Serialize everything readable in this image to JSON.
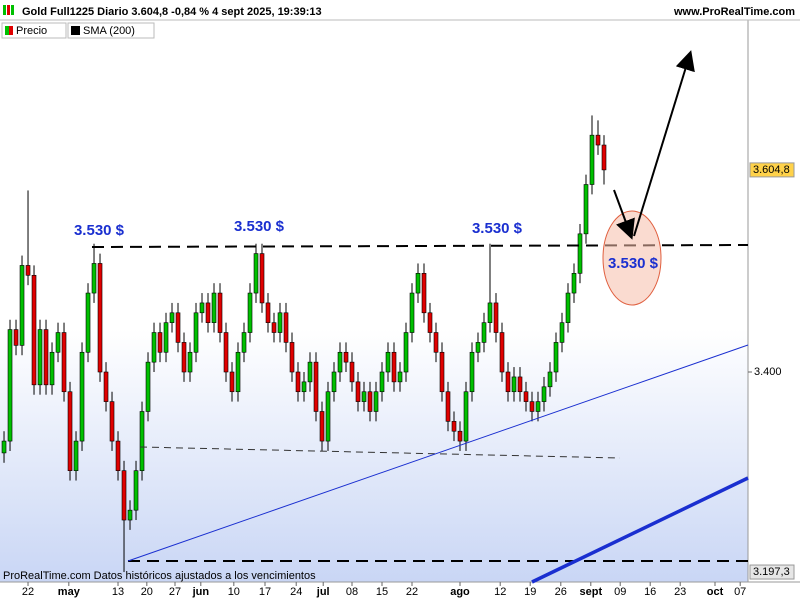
{
  "header": {
    "title": "Gold Full1225 Diario 3.604,8 -0,84 % 4 sept 2025, 19:39:13",
    "site": "www.ProRealTime.com"
  },
  "legend": [
    "Precio",
    "SMA (200)"
  ],
  "footer": "ProRealTime.com  Datos históricos ajustados a los vencimientos",
  "chart_data": {
    "type": "candlestick",
    "up_color": "#00c000",
    "down_color": "#e00000",
    "open": [
      3318,
      3330,
      3443,
      3427,
      3508,
      3498,
      3387,
      3443,
      3387,
      3420,
      3440,
      3380,
      3300,
      3330,
      3420,
      3480,
      3510,
      3400,
      3370,
      3330,
      3300,
      3250,
      3260,
      3300,
      3360,
      3410,
      3440,
      3420,
      3450,
      3460,
      3430,
      3400,
      3420,
      3460,
      3470,
      3450,
      3480,
      3440,
      3400,
      3380,
      3420,
      3440,
      3480,
      3520,
      3470,
      3450,
      3440,
      3460,
      3430,
      3400,
      3380,
      3390,
      3410,
      3360,
      3330,
      3380,
      3400,
      3420,
      3410,
      3390,
      3370,
      3380,
      3360,
      3380,
      3400,
      3420,
      3390,
      3400,
      3440,
      3480,
      3500,
      3460,
      3440,
      3420,
      3380,
      3350,
      3340,
      3330,
      3380,
      3420,
      3430,
      3450,
      3470,
      3440,
      3400,
      3380,
      3395,
      3380,
      3370,
      3360,
      3370,
      3385,
      3400,
      3430,
      3450,
      3480,
      3500,
      3540,
      3590,
      3640,
      3630
    ],
    "high": [
      3340,
      3453,
      3453,
      3518,
      3584,
      3508,
      3453,
      3453,
      3430,
      3450,
      3450,
      3390,
      3340,
      3430,
      3490,
      3530,
      3520,
      3410,
      3380,
      3340,
      3310,
      3270,
      3310,
      3370,
      3420,
      3450,
      3450,
      3460,
      3470,
      3470,
      3440,
      3430,
      3470,
      3480,
      3480,
      3490,
      3490,
      3450,
      3410,
      3430,
      3450,
      3490,
      3530,
      3530,
      3480,
      3460,
      3470,
      3470,
      3440,
      3410,
      3400,
      3420,
      3420,
      3370,
      3390,
      3410,
      3430,
      3430,
      3420,
      3400,
      3390,
      3390,
      3390,
      3410,
      3430,
      3430,
      3410,
      3450,
      3490,
      3510,
      3510,
      3470,
      3450,
      3430,
      3390,
      3360,
      3350,
      3390,
      3430,
      3440,
      3460,
      3530,
      3480,
      3450,
      3410,
      3405,
      3405,
      3390,
      3380,
      3380,
      3395,
      3410,
      3440,
      3460,
      3490,
      3510,
      3550,
      3600,
      3660,
      3655,
      3640
    ],
    "low": [
      3308,
      3320,
      3417,
      3417,
      3488,
      3377,
      3377,
      3377,
      3377,
      3410,
      3370,
      3290,
      3290,
      3320,
      3410,
      3470,
      3390,
      3360,
      3320,
      3290,
      3197.3,
      3240,
      3250,
      3290,
      3350,
      3400,
      3410,
      3410,
      3440,
      3420,
      3390,
      3390,
      3410,
      3450,
      3440,
      3440,
      3430,
      3390,
      3370,
      3370,
      3410,
      3430,
      3470,
      3460,
      3440,
      3430,
      3430,
      3420,
      3390,
      3370,
      3370,
      3380,
      3350,
      3320,
      3320,
      3370,
      3390,
      3400,
      3380,
      3360,
      3360,
      3350,
      3350,
      3370,
      3390,
      3380,
      3380,
      3390,
      3430,
      3470,
      3450,
      3430,
      3410,
      3370,
      3340,
      3330,
      3320,
      3320,
      3370,
      3410,
      3420,
      3440,
      3430,
      3390,
      3370,
      3370,
      3370,
      3360,
      3350,
      3350,
      3360,
      3375,
      3390,
      3420,
      3440,
      3470,
      3490,
      3530,
      3580,
      3620,
      3590
    ],
    "close": [
      3330,
      3443,
      3427,
      3508,
      3498,
      3387,
      3443,
      3387,
      3420,
      3440,
      3380,
      3300,
      3330,
      3420,
      3480,
      3510,
      3400,
      3370,
      3330,
      3300,
      3250,
      3260,
      3300,
      3360,
      3410,
      3440,
      3420,
      3450,
      3460,
      3430,
      3400,
      3420,
      3460,
      3470,
      3450,
      3480,
      3440,
      3400,
      3380,
      3420,
      3440,
      3480,
      3520,
      3470,
      3450,
      3440,
      3460,
      3430,
      3400,
      3380,
      3390,
      3410,
      3360,
      3330,
      3380,
      3400,
      3420,
      3410,
      3390,
      3370,
      3380,
      3360,
      3380,
      3400,
      3420,
      3390,
      3400,
      3440,
      3480,
      3500,
      3460,
      3440,
      3420,
      3380,
      3350,
      3340,
      3330,
      3380,
      3420,
      3430,
      3450,
      3470,
      3440,
      3400,
      3380,
      3395,
      3380,
      3370,
      3360,
      3370,
      3385,
      3400,
      3430,
      3450,
      3480,
      3500,
      3540,
      3590,
      3640,
      3630,
      3604.8
    ],
    "xlim": [
      -0.67,
      124
    ],
    "xticks": [
      {
        "value": 4,
        "label": "22"
      },
      {
        "value": 10.8,
        "label": "may"
      },
      {
        "value": 19,
        "label": "13"
      },
      {
        "value": 23.8,
        "label": "20"
      },
      {
        "value": 28.5,
        "label": "27"
      },
      {
        "value": 32.8,
        "label": "jun"
      },
      {
        "value": 38.3,
        "label": "10"
      },
      {
        "value": 43.5,
        "label": "17"
      },
      {
        "value": 48.7,
        "label": "24"
      },
      {
        "value": 53.2,
        "label": "jul"
      },
      {
        "value": 58,
        "label": "08"
      },
      {
        "value": 63,
        "label": "15"
      },
      {
        "value": 68,
        "label": "22"
      },
      {
        "value": 76,
        "label": "ago"
      },
      {
        "value": 82.7,
        "label": "12"
      },
      {
        "value": 87.7,
        "label": "19"
      },
      {
        "value": 92.8,
        "label": "26"
      },
      {
        "value": 97.8,
        "label": "sept"
      },
      {
        "value": 102.7,
        "label": "09"
      },
      {
        "value": 107.7,
        "label": "16"
      },
      {
        "value": 112.7,
        "label": "23"
      },
      {
        "value": 118.5,
        "label": "oct"
      },
      {
        "value": 122.7,
        "label": "07"
      }
    ],
    "ylim": [
      3187.2,
      3756.7
    ],
    "yticks": [
      {
        "value": 3400,
        "label": "3.400"
      }
    ],
    "price_labels": [
      {
        "value": 3604.8,
        "label": "3.604,8"
      },
      {
        "value": 3197.3,
        "label": "3.197,3"
      }
    ],
    "annotations": [
      "3.530 $",
      "3.530 $",
      "3.530 $",
      "3.530 $"
    ]
  }
}
